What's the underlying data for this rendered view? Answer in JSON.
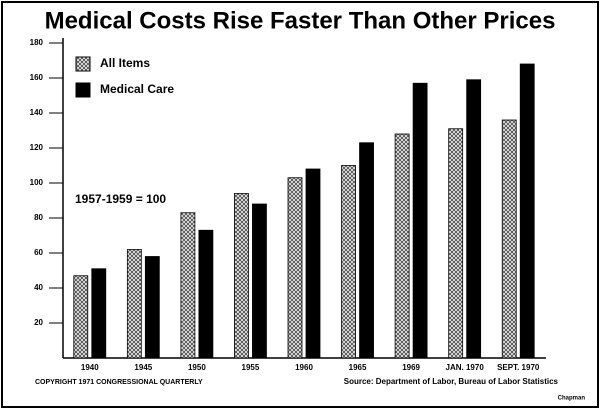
{
  "chart_data": {
    "type": "bar",
    "title": "Medical Costs Rise Faster Than Other Prices",
    "annotation": "1957-1959 = 100",
    "copyright": "COPYRIGHT 1971 CONGRESSIONAL QUARTERLY",
    "source": "Source:  Department of Labor, Bureau of Labor Statistics",
    "credit": "Chapman",
    "categories": [
      "1940",
      "1945",
      "1950",
      "1955",
      "1960",
      "1965",
      "1969",
      "JAN. 1970",
      "SEPT. 1970"
    ],
    "series": [
      {
        "name": "All Items",
        "color": "#555555",
        "pattern": "crosshatch",
        "values": [
          47,
          62,
          83,
          94,
          103,
          110,
          128,
          131,
          136
        ]
      },
      {
        "name": "Medical Care",
        "color": "#000000",
        "values": [
          51,
          58,
          73,
          88,
          108,
          123,
          157,
          159,
          168
        ]
      }
    ],
    "ylim": [
      0,
      180
    ],
    "yticks": [
      20,
      40,
      60,
      80,
      100,
      120,
      140,
      160,
      180
    ],
    "legend": "upper left"
  }
}
